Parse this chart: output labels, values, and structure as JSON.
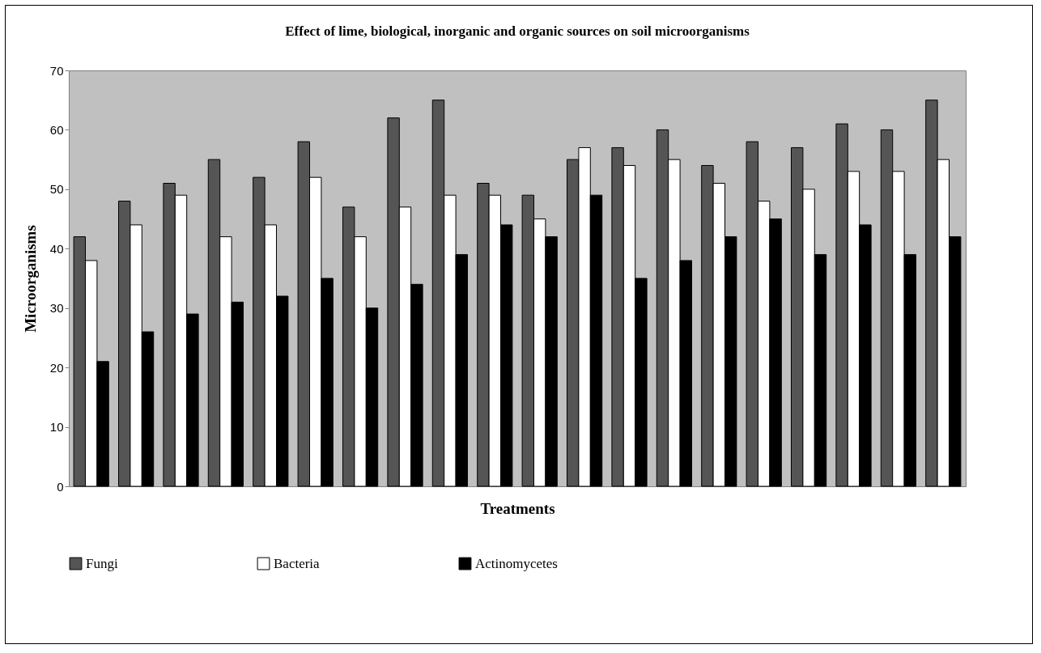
{
  "chart_data": {
    "type": "bar",
    "title": "Effect of lime, biological, inorganic and organic sources on soil microorganisms",
    "xlabel": "Treatments",
    "ylabel": "Microorganisms",
    "categories": [
      null,
      null,
      null,
      null,
      null,
      null,
      null,
      null,
      null,
      null,
      null,
      null,
      null,
      null,
      null,
      null,
      null,
      null,
      null,
      null
    ],
    "series": [
      {
        "name": "Fungi",
        "color": "#555555",
        "values": [
          42,
          48,
          51,
          55,
          52,
          58,
          47,
          62,
          65,
          51,
          49,
          55,
          57,
          60,
          54,
          58,
          57,
          61,
          60,
          65
        ]
      },
      {
        "name": "Bacteria",
        "color": "#ffffff",
        "values": [
          38,
          44,
          49,
          42,
          44,
          52,
          42,
          47,
          49,
          49,
          45,
          57,
          54,
          55,
          51,
          48,
          50,
          53,
          53,
          55
        ]
      },
      {
        "name": "Actinomycetes",
        "color": "#000000",
        "values": [
          21,
          26,
          29,
          31,
          32,
          35,
          30,
          34,
          39,
          44,
          42,
          49,
          35,
          38,
          42,
          45,
          39,
          44,
          39,
          42
        ]
      }
    ],
    "ylim": [
      0,
      70
    ],
    "yticks": [
      0,
      10,
      20,
      30,
      40,
      50,
      60,
      70
    ],
    "grid": false,
    "legend": "bottom"
  }
}
